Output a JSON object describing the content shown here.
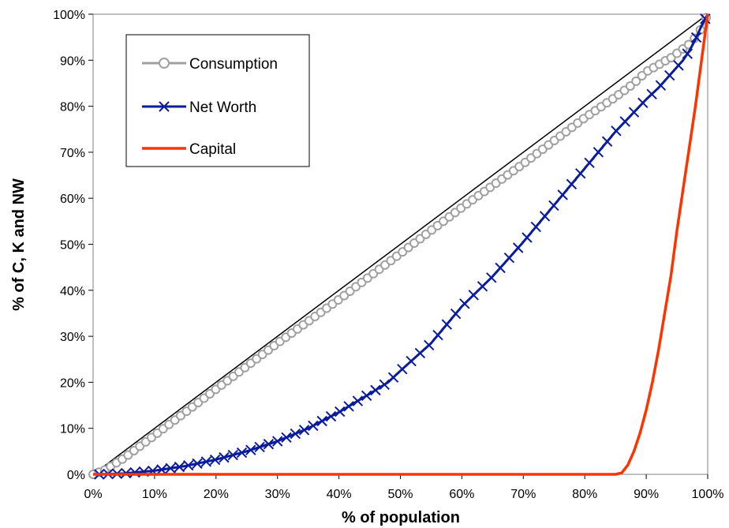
{
  "chart_data": {
    "type": "line",
    "title": "",
    "xlabel": "% of population",
    "ylabel": "% of C, K and NW",
    "xlim": [
      0,
      100
    ],
    "ylim": [
      0,
      100
    ],
    "grid": false,
    "legend_position": "top-left",
    "x_ticks": [
      "0%",
      "10%",
      "20%",
      "30%",
      "40%",
      "50%",
      "60%",
      "70%",
      "80%",
      "90%",
      "100%"
    ],
    "y_ticks": [
      "0%",
      "10%",
      "20%",
      "30%",
      "40%",
      "50%",
      "60%",
      "70%",
      "80%",
      "90%",
      "100%"
    ],
    "reference_line": {
      "x": [
        0,
        100
      ],
      "y": [
        0,
        100
      ],
      "color": "#000000"
    },
    "series": [
      {
        "name": "Consumption",
        "color": "#a0a0a0",
        "marker": "circle",
        "x": [
          0,
          2,
          5,
          10,
          15,
          20,
          30,
          40,
          50,
          60,
          70,
          80,
          85,
          88,
          90,
          92,
          93,
          94,
          95,
          96,
          97,
          98,
          99,
          100
        ],
        "y": [
          0,
          1,
          3.5,
          8.5,
          13.5,
          18.5,
          28.5,
          38,
          48,
          58,
          67.5,
          77.5,
          82,
          85,
          87.5,
          89,
          89.8,
          90.5,
          91.5,
          92.5,
          93.5,
          95,
          97,
          100
        ]
      },
      {
        "name": "Net Worth",
        "color": "#0a1c9c",
        "marker": "x",
        "x": [
          1,
          5,
          10,
          15,
          20,
          25,
          30,
          35,
          40,
          45,
          48,
          50,
          55,
          60,
          65,
          67,
          70,
          75,
          80,
          85,
          90,
          92,
          93,
          94,
          95,
          96,
          97,
          98,
          99,
          100
        ],
        "y": [
          0,
          0.2,
          0.8,
          1.8,
          3.2,
          5,
          7.2,
          10,
          13.5,
          17.5,
          20,
          22.5,
          28.5,
          36.5,
          43,
          46,
          50.5,
          58.5,
          66.5,
          74.5,
          81.5,
          84,
          85.5,
          87,
          88.5,
          90,
          92,
          94.5,
          97.5,
          100
        ]
      },
      {
        "name": "Capital",
        "color": "#ff3300",
        "marker": "none",
        "x": [
          0,
          10,
          20,
          30,
          40,
          50,
          60,
          70,
          80,
          85,
          86,
          87,
          88,
          89,
          90,
          91,
          92,
          93,
          94,
          95,
          96,
          97,
          98,
          99,
          100
        ],
        "y": [
          0,
          0,
          0,
          0,
          0,
          0,
          0,
          0,
          0,
          0,
          0.3,
          2,
          5,
          9,
          14,
          20,
          27,
          35,
          43,
          53,
          62,
          71,
          80,
          90,
          100
        ]
      }
    ]
  }
}
